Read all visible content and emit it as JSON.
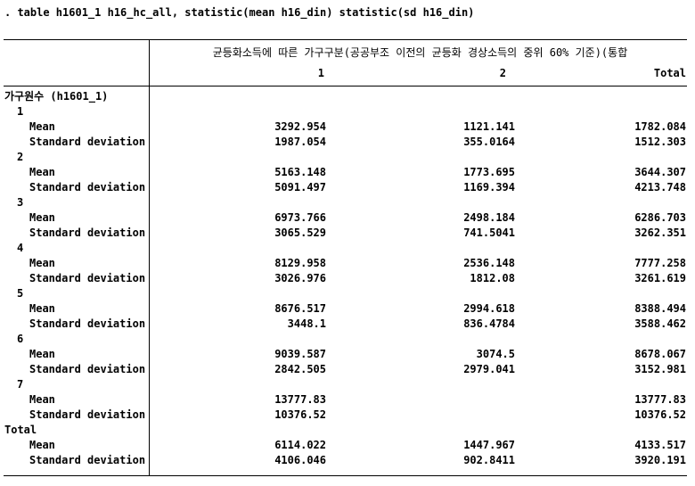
{
  "command": ". table h1601_1 h16_hc_all, statistic(mean h16_din) statistic(sd h16_din)",
  "table": {
    "column_spanner": "균등화소득에 따른 가구구분(공공부조 이전의 균등화 경상소득의 중위 60% 기준)(통합",
    "column_headers": [
      "1",
      "2",
      "Total"
    ],
    "row_dimension": "가구원수 (h1601_1)",
    "stat_labels": {
      "mean": "Mean",
      "sd": "Standard deviation"
    },
    "groups": [
      {
        "label": "1",
        "mean": [
          "3292.954",
          "1121.141",
          "1782.084"
        ],
        "sd": [
          "1987.054",
          "355.0164",
          "1512.303"
        ]
      },
      {
        "label": "2",
        "mean": [
          "5163.148",
          "1773.695",
          "3644.307"
        ],
        "sd": [
          "5091.497",
          "1169.394",
          "4213.748"
        ]
      },
      {
        "label": "3",
        "mean": [
          "6973.766",
          "2498.184",
          "6286.703"
        ],
        "sd": [
          "3065.529",
          "741.5041",
          "3262.351"
        ]
      },
      {
        "label": "4",
        "mean": [
          "8129.958",
          "2536.148",
          "7777.258"
        ],
        "sd": [
          "3026.976",
          "1812.08",
          "3261.619"
        ]
      },
      {
        "label": "5",
        "mean": [
          "8676.517",
          "2994.618",
          "8388.494"
        ],
        "sd": [
          "3448.1",
          "836.4784",
          "3588.462"
        ]
      },
      {
        "label": "6",
        "mean": [
          "9039.587",
          "3074.5",
          "8678.067"
        ],
        "sd": [
          "2842.505",
          "2979.041",
          "3152.981"
        ]
      },
      {
        "label": "7",
        "mean": [
          "13777.83",
          "",
          "13777.83"
        ],
        "sd": [
          "10376.52",
          "",
          "10376.52"
        ]
      },
      {
        "label": "Total",
        "mean": [
          "6114.022",
          "1447.967",
          "4133.517"
        ],
        "sd": [
          "4106.046",
          "902.8411",
          "3920.191"
        ]
      }
    ]
  }
}
